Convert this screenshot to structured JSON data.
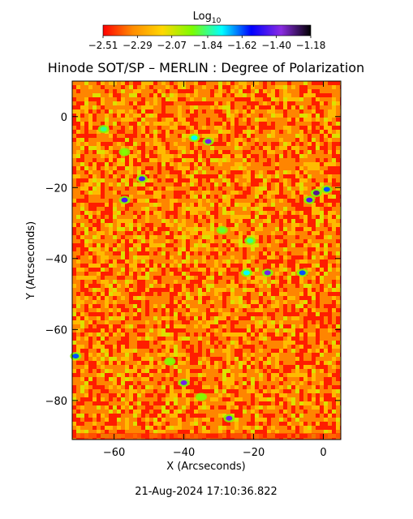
{
  "chart_data": {
    "type": "heatmap",
    "title": "Hinode SOT/SP – MERLIN : Degree of Polarization",
    "xlabel": "X (Arcseconds)",
    "ylabel": "Y (Arcseconds)",
    "xlim": [
      -72,
      5
    ],
    "ylim": [
      -91,
      10
    ],
    "x_ticks": [
      -60,
      -40,
      -20,
      0
    ],
    "y_ticks": [
      0,
      -20,
      -40,
      -60,
      -80
    ],
    "x_tick_labels": [
      "−60",
      "−40",
      "−20",
      "0"
    ],
    "y_tick_labels": [
      "0",
      "−20",
      "−40",
      "−60",
      "−80"
    ],
    "colorbar": {
      "label_base": "Log",
      "label_sub": "10",
      "range": [
        -2.51,
        -1.18
      ],
      "tick_values": [
        -2.51,
        -2.29,
        -2.07,
        -1.84,
        -1.62,
        -1.4,
        -1.18
      ],
      "tick_labels": [
        "−2.51",
        "−2.29",
        "−2.07",
        "−1.84",
        "−1.62",
        "−1.40",
        "−1.18"
      ],
      "colors": [
        "#ff0000",
        "#ff8c00",
        "#ffd700",
        "#7cfc00",
        "#00ffff",
        "#0000ff",
        "#8a2be2",
        "#000000"
      ]
    },
    "background_level": -2.35,
    "high_polarization_regions": [
      {
        "x": -63,
        "y": -3.5,
        "level": -1.84
      },
      {
        "x": -57,
        "y": -10,
        "level": -1.95
      },
      {
        "x": -33,
        "y": -7,
        "level": -1.4
      },
      {
        "x": -37,
        "y": -6,
        "level": -1.75
      },
      {
        "x": -52,
        "y": -17.5,
        "level": -1.45
      },
      {
        "x": -57,
        "y": -23.5,
        "level": -1.45
      },
      {
        "x": -2,
        "y": -21.5,
        "level": -1.3
      },
      {
        "x": -4,
        "y": -23.5,
        "level": -1.45
      },
      {
        "x": 1,
        "y": -20.5,
        "level": -1.62
      },
      {
        "x": -29,
        "y": -32,
        "level": -1.9
      },
      {
        "x": -21,
        "y": -35,
        "level": -1.84
      },
      {
        "x": -16,
        "y": -44,
        "level": -1.4
      },
      {
        "x": -22,
        "y": -44,
        "level": -1.75
      },
      {
        "x": -6,
        "y": -44,
        "level": -1.62
      },
      {
        "x": -71,
        "y": -67.5,
        "level": -1.62
      },
      {
        "x": -40,
        "y": -75,
        "level": -1.4
      },
      {
        "x": -27,
        "y": -85,
        "level": -1.4
      },
      {
        "x": -35,
        "y": -79,
        "level": -1.95
      },
      {
        "x": -44,
        "y": -69,
        "level": -1.95
      }
    ]
  },
  "footer": {
    "timestamp": "21-Aug-2024 17:10:36.822"
  }
}
